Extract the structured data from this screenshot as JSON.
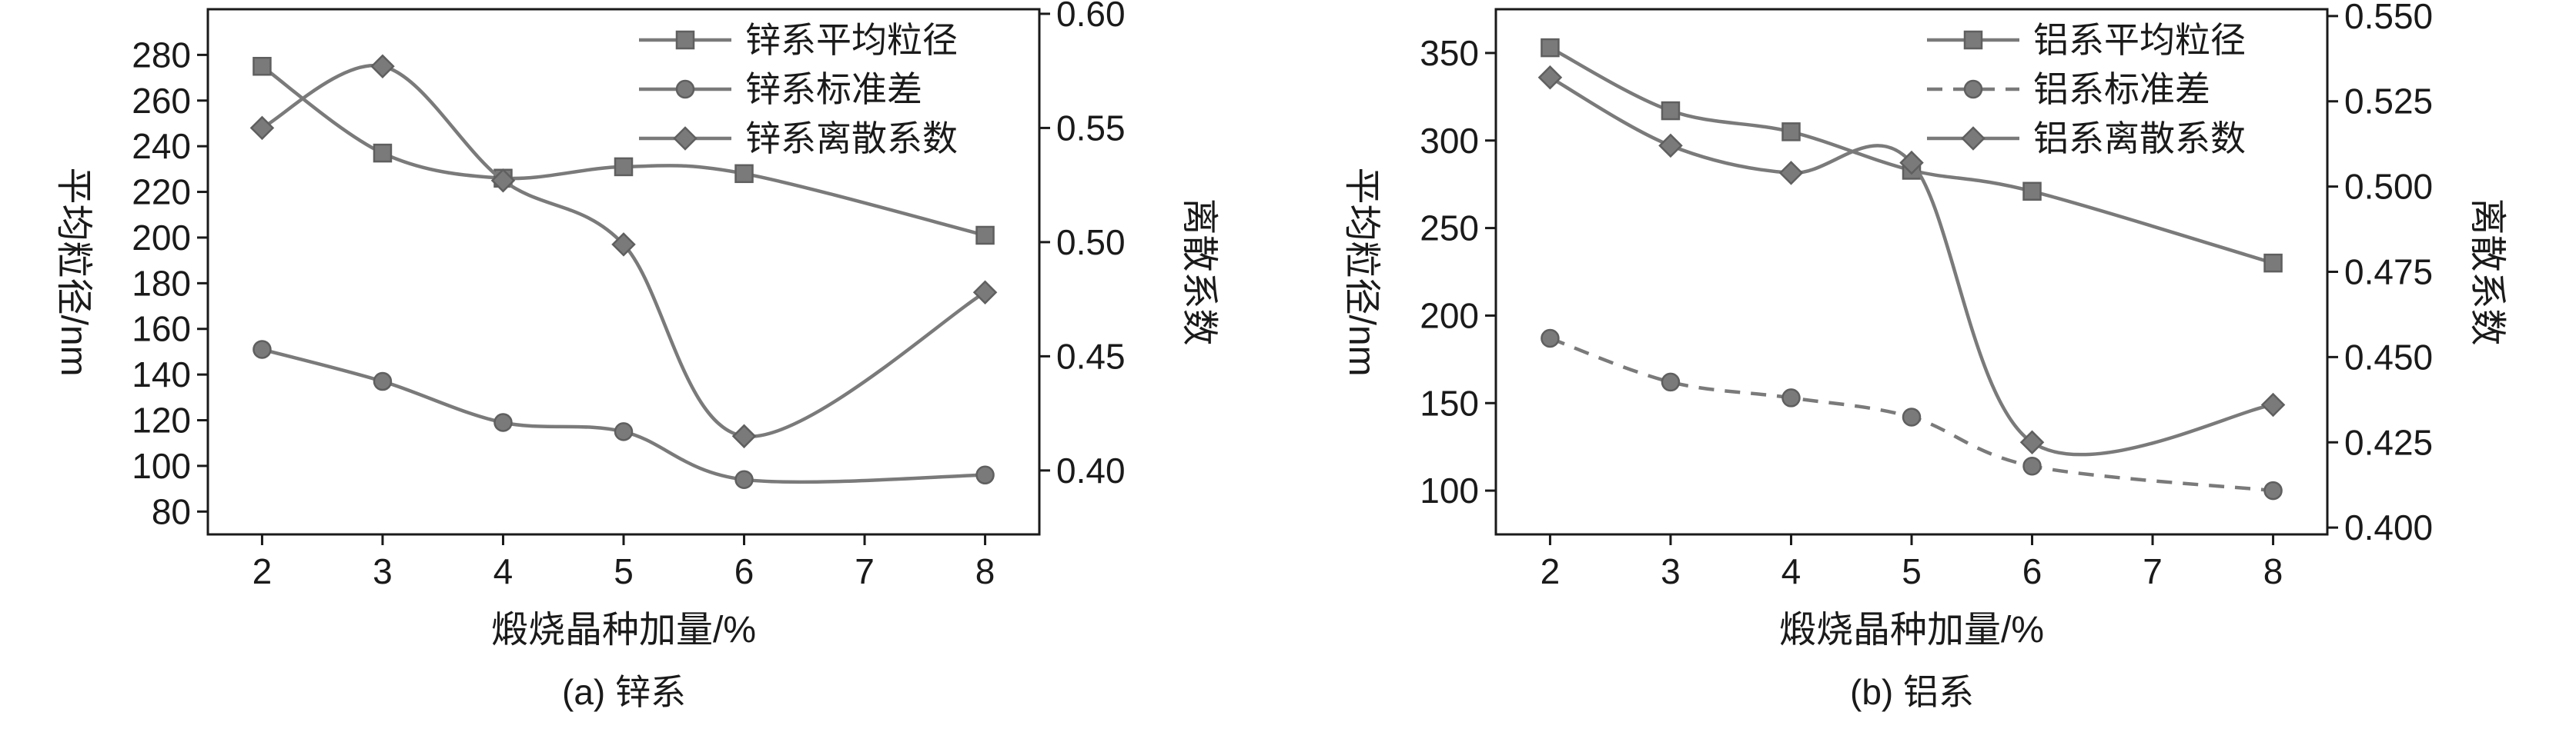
{
  "figure": {
    "background": "#ffffff",
    "axis_color": "#1a1a1a",
    "series_color": "#7a7a7a",
    "marker_stroke": "#5f5f5f"
  },
  "chart_data": [
    {
      "type": "line",
      "panel": "a",
      "caption": "(a) 锌系",
      "xlabel": "煅烧晶种加量/%",
      "ylabel_left": "平均粒径/nm",
      "ylabel_right": "离散系数",
      "legend_position": "top-right-inside",
      "grid": false,
      "x_ticks": [
        2,
        3,
        4,
        5,
        6,
        7,
        8
      ],
      "x_range": [
        1.55,
        8.45
      ],
      "left_ticks": [
        80,
        100,
        120,
        140,
        160,
        180,
        200,
        220,
        240,
        260,
        280
      ],
      "left_range": [
        70,
        300
      ],
      "right_ticks": [
        "0.40",
        "0.45",
        "0.50",
        "0.55",
        "0.60"
      ],
      "right_range": [
        0.372,
        0.602
      ],
      "series": [
        {
          "name": "锌系平均粒径",
          "axis": "left",
          "marker": "square",
          "line": "solid",
          "x": [
            2,
            3,
            4,
            5,
            6,
            8
          ],
          "values": [
            275,
            237,
            226,
            231,
            228,
            201
          ]
        },
        {
          "name": "锌系标准差",
          "axis": "left",
          "marker": "circle",
          "line": "solid",
          "x": [
            2,
            3,
            4,
            5,
            6,
            8
          ],
          "values": [
            151,
            137,
            119,
            115,
            94,
            96
          ]
        },
        {
          "name": "锌系离散系数",
          "axis": "right",
          "marker": "diamond",
          "line": "solid",
          "x": [
            2,
            3,
            4,
            5,
            6,
            8
          ],
          "values": [
            0.55,
            0.577,
            0.527,
            0.499,
            0.415,
            0.478
          ]
        }
      ]
    },
    {
      "type": "line",
      "panel": "b",
      "caption": "(b) 铝系",
      "xlabel": "煅烧晶种加量/%",
      "ylabel_left": "平均粒径/nm",
      "ylabel_right": "离散系数",
      "legend_position": "top-right-inside",
      "grid": false,
      "x_ticks": [
        2,
        3,
        4,
        5,
        6,
        7,
        8
      ],
      "x_range": [
        1.55,
        8.45
      ],
      "left_ticks": [
        100,
        150,
        200,
        250,
        300,
        350
      ],
      "left_range": [
        75,
        375
      ],
      "right_ticks": [
        "0.400",
        "0.425",
        "0.450",
        "0.475",
        "0.500",
        "0.525",
        "0.550"
      ],
      "right_range": [
        0.398,
        0.552
      ],
      "series": [
        {
          "name": "铝系平均粒径",
          "axis": "left",
          "marker": "square",
          "line": "solid",
          "x": [
            2,
            3,
            4,
            5,
            6,
            8
          ],
          "values": [
            353,
            317,
            305,
            283,
            271,
            230
          ]
        },
        {
          "name": "铝系标准差",
          "axis": "left",
          "marker": "circle",
          "line": "dashed",
          "x": [
            2,
            3,
            4,
            5,
            6,
            8
          ],
          "values": [
            187,
            162,
            153,
            142,
            114,
            100
          ]
        },
        {
          "name": "铝系离散系数",
          "axis": "right",
          "marker": "diamond",
          "line": "solid",
          "x": [
            2,
            3,
            4,
            5,
            6,
            8
          ],
          "values": [
            0.532,
            0.512,
            0.504,
            0.507,
            0.425,
            0.436
          ]
        }
      ]
    }
  ]
}
